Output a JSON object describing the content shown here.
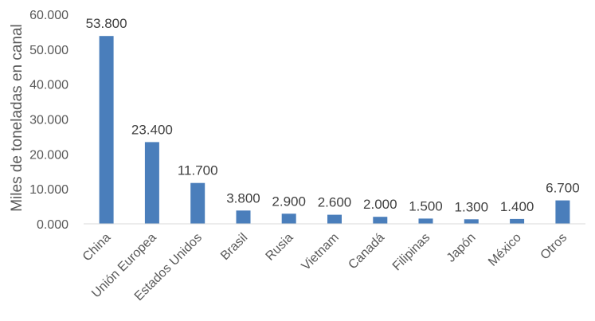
{
  "chart_data": {
    "type": "bar",
    "title": "",
    "xlabel": "",
    "ylabel": "Miles de toneladas en canal",
    "categories": [
      "China",
      "Unión Europea",
      "Estados Unidos",
      "Brasil",
      "Rusia",
      "Vietnam",
      "Canadá",
      "Filipinas",
      "Japón",
      "México",
      "Otros"
    ],
    "values": [
      53800,
      23400,
      11700,
      3800,
      2900,
      2600,
      2000,
      1500,
      1300,
      1400,
      6700
    ],
    "data_labels": [
      "53.800",
      "23.400",
      "11.700",
      "3.800",
      "2.900",
      "2.600",
      "2.000",
      "1.500",
      "1.300",
      "1.400",
      "6.700"
    ],
    "ylim": [
      0,
      60000
    ],
    "yticks": [
      0,
      10000,
      20000,
      30000,
      40000,
      50000,
      60000
    ],
    "ytick_labels": [
      "0.000",
      "10.000",
      "20.000",
      "30.000",
      "40.000",
      "50.000",
      "60.000"
    ],
    "grid": false,
    "legend": "none",
    "bar_color": "#4a7ebb",
    "axis_color": "#d9d9d9"
  }
}
